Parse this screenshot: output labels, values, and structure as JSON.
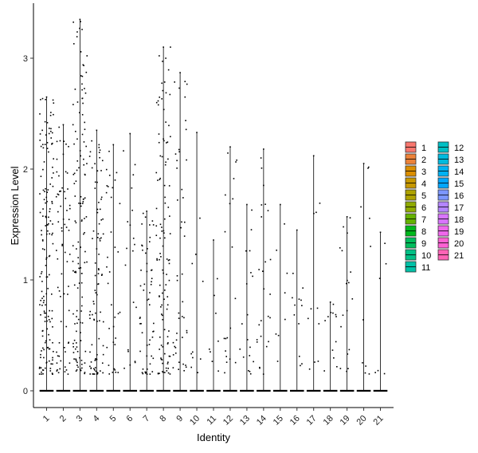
{
  "chart_data": {
    "type": "violin",
    "xlabel": "Identity",
    "ylabel": "Expression Level",
    "ylim": [
      -0.15,
      3.5
    ],
    "yticks": [
      0,
      1,
      2,
      3
    ],
    "categories": [
      "1",
      "2",
      "3",
      "4",
      "5",
      "6",
      "7",
      "8",
      "9",
      "10",
      "11",
      "12",
      "13",
      "14",
      "15",
      "16",
      "17",
      "18",
      "19",
      "20",
      "21"
    ],
    "max_values": [
      2.65,
      2.4,
      3.35,
      2.35,
      2.22,
      2.32,
      1.62,
      3.1,
      2.87,
      2.33,
      1.36,
      2.2,
      1.68,
      2.18,
      1.68,
      1.45,
      2.12,
      0.8,
      1.57,
      2.05,
      1.43
    ],
    "point_density": [
      160,
      70,
      130,
      90,
      35,
      20,
      55,
      110,
      45,
      10,
      8,
      20,
      18,
      25,
      8,
      12,
      10,
      12,
      18,
      10,
      6
    ],
    "point_color": "#000000",
    "legend": {
      "position": "right",
      "columns": 2,
      "items": [
        {
          "label": "1",
          "color": "#F8766D"
        },
        {
          "label": "2",
          "color": "#EC8239"
        },
        {
          "label": "3",
          "color": "#DB8E00"
        },
        {
          "label": "4",
          "color": "#C79800"
        },
        {
          "label": "5",
          "color": "#AEA200"
        },
        {
          "label": "6",
          "color": "#8FAA00"
        },
        {
          "label": "7",
          "color": "#64B200"
        },
        {
          "label": "8",
          "color": "#00B81B"
        },
        {
          "label": "9",
          "color": "#00BD5C"
        },
        {
          "label": "10",
          "color": "#00C085"
        },
        {
          "label": "11",
          "color": "#00C1A7"
        },
        {
          "label": "12",
          "color": "#00BFC4"
        },
        {
          "label": "13",
          "color": "#00BADE"
        },
        {
          "label": "14",
          "color": "#00B2F3"
        },
        {
          "label": "15",
          "color": "#00A6FF"
        },
        {
          "label": "16",
          "color": "#7C96FF"
        },
        {
          "label": "17",
          "color": "#B385FF"
        },
        {
          "label": "18",
          "color": "#D874FD"
        },
        {
          "label": "19",
          "color": "#EF67EB"
        },
        {
          "label": "20",
          "color": "#FD61D3"
        },
        {
          "label": "21",
          "color": "#FF63B6"
        }
      ]
    }
  }
}
